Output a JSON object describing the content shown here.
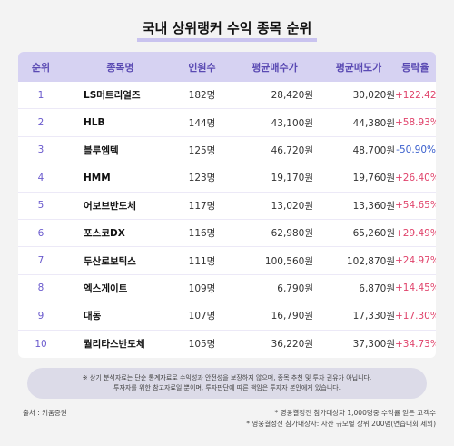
{
  "title": "국내 상위랭커 수익 종목 순위",
  "table": {
    "headers": {
      "rank": "순위",
      "name": "종목명",
      "count": "인원수",
      "buy": "평균매수가",
      "sell": "평균매도가",
      "rate": "등락율"
    },
    "rows": [
      {
        "rank": "1",
        "name": "LS머트리얼즈",
        "count": "182명",
        "buy": "28,420원",
        "sell": "30,020원",
        "rate": "+122.42%"
      },
      {
        "rank": "2",
        "name": "HLB",
        "count": "144명",
        "buy": "43,100원",
        "sell": "44,380원",
        "rate": "+58.93%"
      },
      {
        "rank": "3",
        "name": "블루엠텍",
        "count": "125명",
        "buy": "46,720원",
        "sell": "48,700원",
        "rate": "-50.90%"
      },
      {
        "rank": "4",
        "name": "HMM",
        "count": "123명",
        "buy": "19,170원",
        "sell": "19,760원",
        "rate": "+26.40%"
      },
      {
        "rank": "5",
        "name": "어보브반도체",
        "count": "117명",
        "buy": "13,020원",
        "sell": "13,360원",
        "rate": "+54.65%"
      },
      {
        "rank": "6",
        "name": "포스코DX",
        "count": "116명",
        "buy": "62,980원",
        "sell": "65,260원",
        "rate": "+29.49%"
      },
      {
        "rank": "7",
        "name": "두산로보틱스",
        "count": "111명",
        "buy": "100,560원",
        "sell": "102,870원",
        "rate": "+24.97%"
      },
      {
        "rank": "8",
        "name": "엑스게이트",
        "count": "109명",
        "buy": "6,790원",
        "sell": "6,870원",
        "rate": "+14.45%"
      },
      {
        "rank": "9",
        "name": "대동",
        "count": "107명",
        "buy": "16,790원",
        "sell": "17,330원",
        "rate": "+17.30%"
      },
      {
        "rank": "10",
        "name": "퀄리타스반도체",
        "count": "105명",
        "buy": "36,220원",
        "sell": "37,300원",
        "rate": "+34.73%"
      }
    ]
  },
  "note": {
    "line1": "※ 상기 분석자료는 단순 통계자료로 수익성과 안전성을 보장하지 않으며, 종목 추천 및 투자 권유가 아닙니다.",
    "line2": "투자자를 위한 참고자료일 뿐이며, 투자판단에 따른 책임은 투자자 본인에게 있습니다."
  },
  "source": "출처 : 키움증권",
  "footnotes": {
    "f1": "* 영웅결정전 참가대상자 1,000명중 수익률 얻은 고객수",
    "f2": "* 영웅결정전 참가대상자: 자산 규모별 상위 200명(연습대회 제외)"
  },
  "colors": {
    "header_bg": "#d6d2f2",
    "accent": "#5a4ab3",
    "up": "#e0436b",
    "down": "#3a5fcd"
  }
}
